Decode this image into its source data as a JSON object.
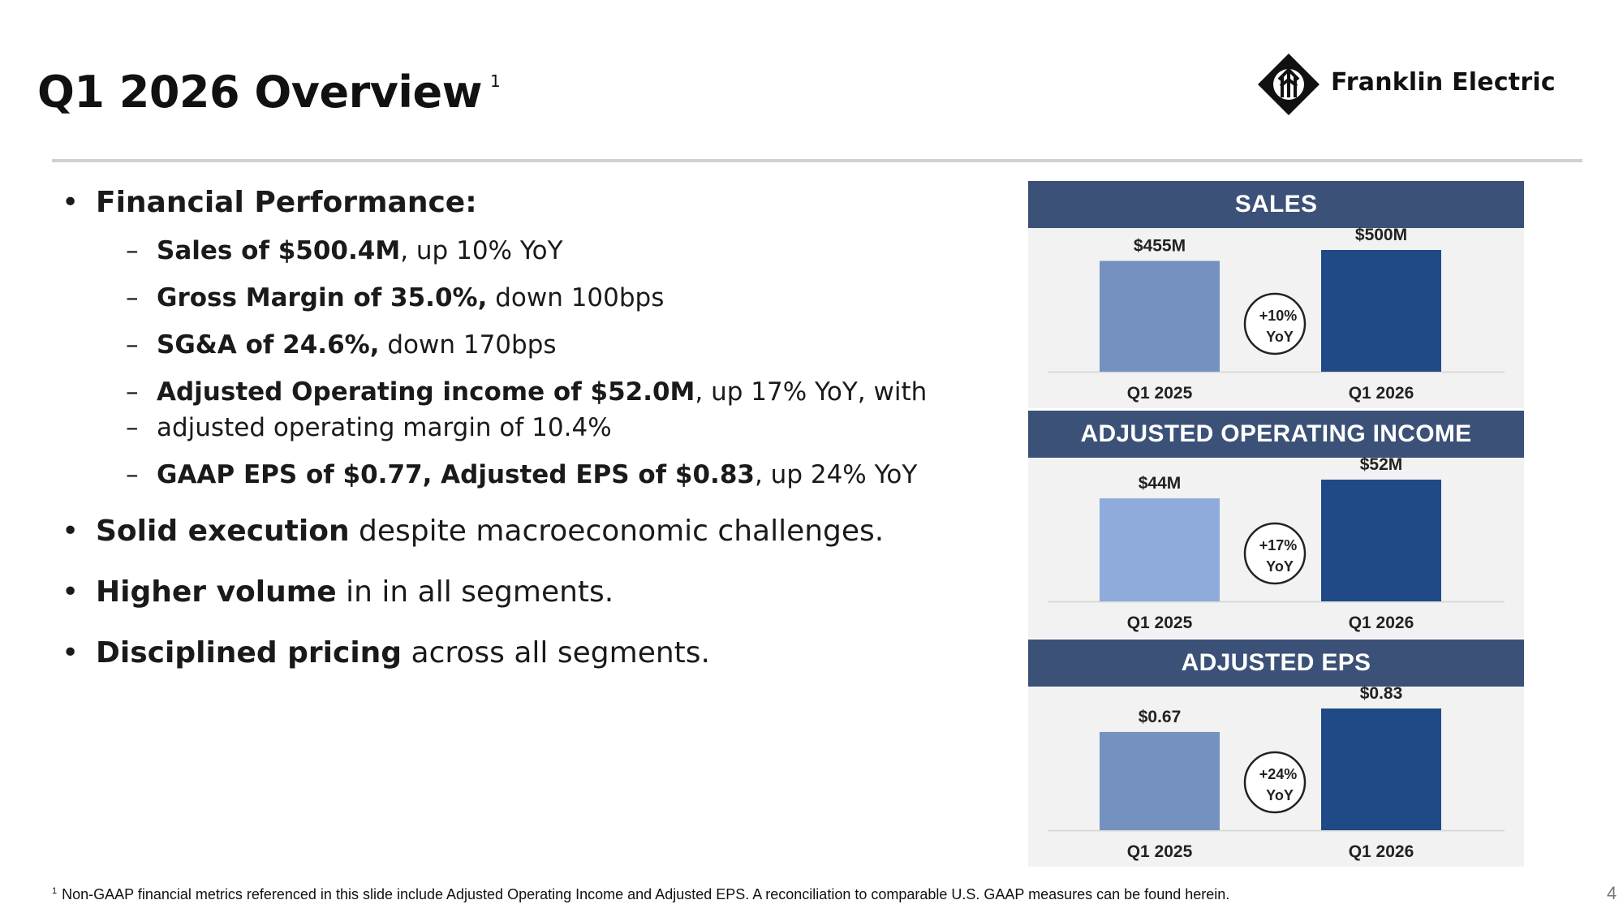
{
  "slide": {
    "title": "Q1 2026 Overview",
    "title_sup": "1",
    "logo_text": "Franklin Electric",
    "page_number": "4",
    "footnote_sup": "1",
    "footnote_text": "Non-GAAP financial metrics referenced in this slide include Adjusted Operating Income and Adjusted EPS. A reconciliation to comparable U.S. GAAP measures can be found herein."
  },
  "bullets": {
    "financial_performance": "Financial Performance:",
    "sales_bold": "Sales of $500.4M",
    "sales_rest": ", up 10% YoY",
    "gm_bold": "Gross Margin of 35.0%,",
    "gm_rest": " down 100bps",
    "sga_bold": "SG&A of  24.6%,",
    "sga_rest": " down 170bps",
    "aoi_bold": "Adjusted Operating income of $52.0M",
    "aoi_rest": ", up 17% YoY, with",
    "aoi_line2": "adjusted operating margin of 10.4%",
    "eps_bold": "GAAP EPS of $0.77, Adjusted EPS of $0.83",
    "eps_rest": ", up 24% YoY",
    "exec_bold": "Solid execution",
    "exec_rest": " despite macroeconomic challenges.",
    "volume_bold": "Higher volume",
    "volume_rest": " in in all segments.",
    "pricing_bold": "Disciplined pricing",
    "pricing_rest": " across all segments."
  },
  "colors": {
    "header_bg": "#3b5178",
    "bar_prior": "#7591c0",
    "bar_prior_aoi": "#8eabdb",
    "bar_current": "#1f4a86"
  },
  "chart_data": [
    {
      "type": "bar",
      "title": "SALES",
      "categories": [
        "Q1 2025",
        "Q1 2026"
      ],
      "values": [
        455,
        500
      ],
      "value_labels": [
        "$455M",
        "$500M"
      ],
      "growth_label_1": "+10%",
      "growth_label_2": "YoY",
      "ylim": [
        0,
        500
      ]
    },
    {
      "type": "bar",
      "title": "ADJUSTED OPERATING INCOME",
      "categories": [
        "Q1 2025",
        "Q1 2026"
      ],
      "values": [
        44,
        52
      ],
      "value_labels": [
        "$44M",
        "$52M"
      ],
      "growth_label_1": "+17%",
      "growth_label_2": "YoY",
      "ylim": [
        0,
        52
      ]
    },
    {
      "type": "bar",
      "title": "ADJUSTED  EPS",
      "categories": [
        "Q1 2025",
        "Q1 2026"
      ],
      "values": [
        0.67,
        0.83
      ],
      "value_labels": [
        "$0.67",
        "$0.83"
      ],
      "growth_label_1": "+24%",
      "growth_label_2": "YoY",
      "ylim": [
        0,
        0.83
      ]
    }
  ]
}
